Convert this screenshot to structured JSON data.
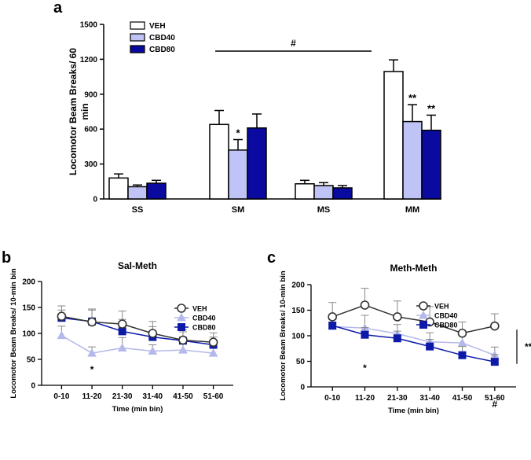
{
  "colors": {
    "veh": "#ffffff",
    "cbd40": "#bfc3f5",
    "cbd80": "#0a0aa0",
    "stroke": "#000000",
    "line40": "#b4b8ea",
    "line80": "#0d1aa8"
  },
  "chart_data": [
    {
      "panel": "a",
      "type": "bar",
      "title": "",
      "ylabel": "Locomotor Beam Breaks/ 60 min",
      "xlabel": "",
      "ylim": [
        0,
        1500
      ],
      "yticks": [
        0,
        300,
        600,
        900,
        1200,
        1500
      ],
      "categories": [
        "SS",
        "SM",
        "MS",
        "MM"
      ],
      "legend_position": "top-left",
      "series": [
        {
          "name": "VEH",
          "color_key": "veh",
          "values": [
            180,
            640,
            130,
            1095
          ],
          "errors": [
            35,
            120,
            30,
            100
          ]
        },
        {
          "name": "CBD40",
          "color_key": "cbd40",
          "values": [
            105,
            420,
            115,
            665
          ],
          "errors": [
            15,
            90,
            25,
            145
          ]
        },
        {
          "name": "CBD80",
          "color_key": "cbd80",
          "values": [
            135,
            610,
            95,
            590
          ],
          "errors": [
            25,
            120,
            20,
            130
          ]
        }
      ],
      "annotations": [
        {
          "text": "*",
          "category": "SM",
          "series": "CBD40"
        },
        {
          "text": "**",
          "category": "MM",
          "series": "CBD40"
        },
        {
          "text": "**",
          "category": "MM",
          "series": "CBD80"
        },
        {
          "text": "#",
          "bracket": [
            "SM",
            "MM"
          ]
        }
      ]
    },
    {
      "panel": "b",
      "type": "line",
      "title": "Sal-Meth",
      "ylabel": "Locomotor Beam Breaks/ 10-min bin",
      "xlabel": "Time (min bin)",
      "ylim": [
        0,
        200
      ],
      "yticks": [
        0,
        50,
        100,
        150,
        200
      ],
      "categories": [
        "0-10",
        "11-20",
        "21-30",
        "31-40",
        "41-50",
        "51-60"
      ],
      "legend_position": "top-right",
      "series": [
        {
          "name": "VEH",
          "marker": "circle",
          "values": [
            133,
            122,
            118,
            100,
            87,
            83
          ],
          "errors": [
            20,
            25,
            25,
            23,
            20,
            18
          ]
        },
        {
          "name": "CBD40",
          "marker": "triangle",
          "values": [
            96,
            62,
            72,
            66,
            68,
            62
          ],
          "errors": [
            18,
            12,
            20,
            12,
            12,
            10
          ]
        },
        {
          "name": "CBD80",
          "marker": "square",
          "values": [
            130,
            123,
            104,
            93,
            86,
            78
          ],
          "errors": [
            15,
            22,
            23,
            20,
            17,
            15
          ]
        }
      ],
      "annotations": [
        {
          "text": "*",
          "category": "11-20"
        }
      ]
    },
    {
      "panel": "c",
      "type": "line",
      "title": "Meth-Meth",
      "ylabel": "Locomotor Beam Breaks/ 10-min bin",
      "xlabel": "Time (min bin)",
      "ylim": [
        0,
        200
      ],
      "yticks": [
        0,
        50,
        100,
        150,
        200
      ],
      "categories": [
        "0-10",
        "11-20",
        "21-30",
        "31-40",
        "41-50",
        "51-60"
      ],
      "legend_position": "top-right",
      "series": [
        {
          "name": "VEH",
          "marker": "circle",
          "values": [
            137,
            160,
            137,
            127,
            105,
            119
          ],
          "errors": [
            28,
            33,
            31,
            30,
            22,
            24
          ]
        },
        {
          "name": "CBD40",
          "marker": "triangle",
          "values": [
            118,
            115,
            104,
            88,
            86,
            62
          ],
          "errors": [
            14,
            25,
            18,
            18,
            18,
            16
          ]
        },
        {
          "name": "CBD80",
          "marker": "square",
          "values": [
            120,
            102,
            95,
            79,
            62,
            49
          ],
          "errors": [
            12,
            14,
            14,
            14,
            17,
            14
          ]
        }
      ],
      "annotations": [
        {
          "text": "*",
          "category": "11-20"
        },
        {
          "text": "#",
          "category": "51-60"
        },
        {
          "text": "**",
          "bracket": "side"
        }
      ]
    }
  ]
}
